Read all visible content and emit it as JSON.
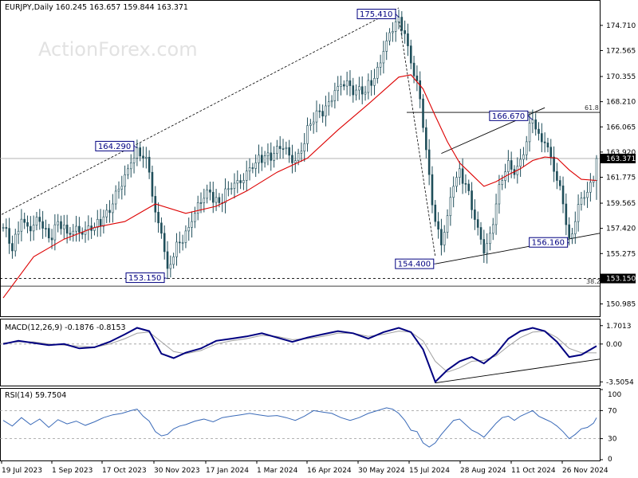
{
  "header": {
    "main": "EURJPY,Daily  160.245 163.657 159.844 163.371",
    "macd": "MACD(12,26,9) -0.1876 -0.8153",
    "rsi": "RSI(14) 59.7504"
  },
  "watermark": "ActionForex.com",
  "colors": {
    "background": "#ffffff",
    "candles": "#1f4e5a",
    "ma_line": "#dd0000",
    "macd_line": "#000080",
    "signal_line": "#a0a0a0",
    "rsi_line": "#3a6ab8",
    "callout_border": "#000080",
    "price_box": "#000000",
    "price_box_text": "#ffffff"
  },
  "price_axis": {
    "ticks": [
      "174.710",
      "172.565",
      "170.355",
      "168.210",
      "166.065",
      "163.920",
      "161.775",
      "159.565",
      "157.420",
      "155.275",
      "153.130",
      "150.985"
    ],
    "current_price": "163.371",
    "level_box": "153.150"
  },
  "macd_axis": {
    "ticks": [
      "1.7013",
      "0.00",
      "-3.5054"
    ]
  },
  "rsi_axis": {
    "ticks": [
      "100",
      "70",
      "30",
      "0"
    ]
  },
  "date_axis": {
    "labels": [
      "19 Jul 2023",
      "1 Sep 2023",
      "17 Oct 2023",
      "30 Nov 2023",
      "17 Jan 2024",
      "1 Mar 2024",
      "16 Apr 2024",
      "30 May 2024",
      "15 Jul 2024",
      "28 Aug 2024",
      "11 Oct 2024",
      "26 Nov 2024"
    ]
  },
  "annotations": {
    "peaks": [
      {
        "label": "175.410"
      },
      {
        "label": "164.290"
      },
      {
        "label": "166.670"
      },
      {
        "label": "153.150"
      },
      {
        "label": "154.400"
      },
      {
        "label": "156.160"
      }
    ],
    "fib_high": "61.8",
    "fib_low": "38.2"
  },
  "chart_data": {
    "type": "candlestick",
    "symbol": "EURJPY",
    "timeframe": "Daily",
    "last_bar": {
      "open": 160.245,
      "high": 163.657,
      "low": 159.844,
      "close": 163.371
    },
    "ylim": [
      150.0,
      176.6
    ],
    "x_dates": [
      "19 Jul 2023",
      "1 Sep 2023",
      "17 Oct 2023",
      "30 Nov 2023",
      "17 Jan 2024",
      "1 Mar 2024",
      "16 Apr 2024",
      "30 May 2024",
      "15 Jul 2024",
      "28 Aug 2024",
      "11 Oct 2024",
      "26 Nov 2024"
    ],
    "price_path": [
      [
        0,
        157.5
      ],
      [
        3,
        155.5
      ],
      [
        6,
        158.2
      ],
      [
        9,
        157.2
      ],
      [
        12,
        158.0
      ],
      [
        15,
        156.6
      ],
      [
        18,
        158.0
      ],
      [
        21,
        157.0
      ],
      [
        24,
        157.6
      ],
      [
        27,
        157.3
      ],
      [
        30,
        157.5
      ],
      [
        33,
        158.4
      ],
      [
        36,
        159.5
      ],
      [
        39,
        161.0
      ],
      [
        42,
        163.0
      ],
      [
        44,
        164.29
      ],
      [
        46,
        163.4
      ],
      [
        48,
        162.2
      ],
      [
        50,
        158.8
      ],
      [
        52,
        157.0
      ],
      [
        54,
        154.0
      ],
      [
        56,
        155.0
      ],
      [
        58,
        156.2
      ],
      [
        60,
        157.2
      ],
      [
        62,
        158.0
      ],
      [
        65,
        159.6
      ],
      [
        68,
        160.5
      ],
      [
        71,
        159.6
      ],
      [
        74,
        160.8
      ],
      [
        77,
        161.5
      ],
      [
        80,
        162.3
      ],
      [
        83,
        163.0
      ],
      [
        86,
        163.6
      ],
      [
        89,
        163.8
      ],
      [
        92,
        164.2
      ],
      [
        95,
        163.0
      ],
      [
        98,
        164.0
      ],
      [
        101,
        166.3
      ],
      [
        104,
        167.4
      ],
      [
        107,
        168.2
      ],
      [
        110,
        169.5
      ],
      [
        113,
        170.0
      ],
      [
        116,
        169.2
      ],
      [
        119,
        169.0
      ],
      [
        122,
        170.2
      ],
      [
        125,
        172.5
      ],
      [
        128,
        174.2
      ],
      [
        130,
        175.41
      ],
      [
        132,
        174.0
      ],
      [
        134,
        171.5
      ],
      [
        136,
        170.0
      ],
      [
        138,
        166.0
      ],
      [
        140,
        162.0
      ],
      [
        142,
        158.0
      ],
      [
        144,
        156.0
      ],
      [
        146,
        158.5
      ],
      [
        148,
        161.0
      ],
      [
        150,
        162.5
      ],
      [
        152,
        161.2
      ],
      [
        154,
        159.0
      ],
      [
        156,
        157.5
      ],
      [
        158,
        155.3
      ],
      [
        160,
        157.0
      ],
      [
        162,
        159.5
      ],
      [
        164,
        161.5
      ],
      [
        166,
        163.2
      ],
      [
        168,
        162.0
      ],
      [
        170,
        163.3
      ],
      [
        172,
        164.8
      ],
      [
        174,
        166.67
      ],
      [
        176,
        165.5
      ],
      [
        178,
        164.7
      ],
      [
        180,
        163.5
      ],
      [
        182,
        161.5
      ],
      [
        184,
        159.5
      ],
      [
        186,
        156.6
      ],
      [
        188,
        158.0
      ],
      [
        190,
        160.0
      ],
      [
        192,
        160.5
      ],
      [
        194,
        161.5
      ],
      [
        195,
        163.371
      ]
    ],
    "moving_average_path": [
      [
        0,
        151.5
      ],
      [
        10,
        155.0
      ],
      [
        20,
        156.5
      ],
      [
        30,
        157.5
      ],
      [
        40,
        158.0
      ],
      [
        50,
        159.5
      ],
      [
        60,
        158.7
      ],
      [
        70,
        159.3
      ],
      [
        80,
        160.6
      ],
      [
        90,
        162.2
      ],
      [
        100,
        163.4
      ],
      [
        110,
        165.8
      ],
      [
        120,
        168.0
      ],
      [
        130,
        170.3
      ],
      [
        134,
        170.5
      ],
      [
        138,
        169.3
      ],
      [
        142,
        167.0
      ],
      [
        146,
        164.8
      ],
      [
        150,
        163.0
      ],
      [
        154,
        162.0
      ],
      [
        158,
        161.0
      ],
      [
        162,
        161.4
      ],
      [
        166,
        162.0
      ],
      [
        170,
        162.5
      ],
      [
        174,
        163.2
      ],
      [
        178,
        163.5
      ],
      [
        182,
        163.4
      ],
      [
        186,
        162.4
      ],
      [
        190,
        161.6
      ],
      [
        195,
        161.5
      ]
    ],
    "levels": [
      {
        "name": "61.8",
        "value": 167.3
      },
      {
        "name": "38.2",
        "value": 152.5
      },
      {
        "name": "153.150",
        "value": 153.15
      },
      {
        "name": "163.371",
        "value": 163.371
      }
    ],
    "macd": {
      "params": "12,26,9",
      "macd": -0.1876,
      "signal": -0.8153,
      "ylim": [
        -3.7,
        2.2
      ],
      "macd_path": [
        [
          0,
          0.0
        ],
        [
          5,
          0.3
        ],
        [
          10,
          0.1
        ],
        [
          15,
          -0.1
        ],
        [
          20,
          0.0
        ],
        [
          25,
          -0.4
        ],
        [
          30,
          -0.3
        ],
        [
          35,
          0.2
        ],
        [
          40,
          0.9
        ],
        [
          44,
          1.5
        ],
        [
          48,
          1.2
        ],
        [
          52,
          -0.9
        ],
        [
          56,
          -1.3
        ],
        [
          60,
          -0.8
        ],
        [
          65,
          -0.4
        ],
        [
          70,
          0.3
        ],
        [
          75,
          0.5
        ],
        [
          80,
          0.7
        ],
        [
          85,
          1.0
        ],
        [
          90,
          0.6
        ],
        [
          95,
          0.2
        ],
        [
          100,
          0.6
        ],
        [
          105,
          0.9
        ],
        [
          110,
          1.2
        ],
        [
          115,
          1.0
        ],
        [
          120,
          0.5
        ],
        [
          125,
          1.1
        ],
        [
          130,
          1.5
        ],
        [
          134,
          1.1
        ],
        [
          138,
          -0.5
        ],
        [
          142,
          -3.5
        ],
        [
          146,
          -2.4
        ],
        [
          150,
          -1.6
        ],
        [
          154,
          -1.2
        ],
        [
          158,
          -1.8
        ],
        [
          162,
          -0.9
        ],
        [
          166,
          0.5
        ],
        [
          170,
          1.2
        ],
        [
          174,
          1.5
        ],
        [
          178,
          1.2
        ],
        [
          182,
          0.2
        ],
        [
          186,
          -1.2
        ],
        [
          190,
          -1.0
        ],
        [
          195,
          -0.19
        ]
      ],
      "signal_path": [
        [
          0,
          0.1
        ],
        [
          5,
          0.2
        ],
        [
          10,
          0.2
        ],
        [
          15,
          0.0
        ],
        [
          20,
          -0.1
        ],
        [
          25,
          -0.2
        ],
        [
          30,
          -0.3
        ],
        [
          35,
          0.0
        ],
        [
          40,
          0.5
        ],
        [
          44,
          1.0
        ],
        [
          48,
          1.1
        ],
        [
          52,
          0.2
        ],
        [
          56,
          -0.7
        ],
        [
          60,
          -0.9
        ],
        [
          65,
          -0.6
        ],
        [
          70,
          0.0
        ],
        [
          75,
          0.3
        ],
        [
          80,
          0.5
        ],
        [
          85,
          0.8
        ],
        [
          90,
          0.7
        ],
        [
          95,
          0.4
        ],
        [
          100,
          0.5
        ],
        [
          105,
          0.7
        ],
        [
          110,
          1.0
        ],
        [
          115,
          1.0
        ],
        [
          120,
          0.7
        ],
        [
          125,
          0.9
        ],
        [
          130,
          1.2
        ],
        [
          134,
          1.1
        ],
        [
          138,
          0.3
        ],
        [
          142,
          -1.6
        ],
        [
          146,
          -2.6
        ],
        [
          150,
          -2.2
        ],
        [
          154,
          -1.6
        ],
        [
          158,
          -1.5
        ],
        [
          162,
          -1.1
        ],
        [
          166,
          -0.2
        ],
        [
          170,
          0.6
        ],
        [
          174,
          1.1
        ],
        [
          178,
          1.2
        ],
        [
          182,
          0.6
        ],
        [
          186,
          -0.4
        ],
        [
          190,
          -0.8
        ],
        [
          195,
          -0.82
        ]
      ]
    },
    "rsi": {
      "period": 14,
      "value": 59.7504,
      "ylim": [
        0,
        100
      ],
      "levels": [
        70,
        30
      ],
      "path": [
        [
          0,
          56
        ],
        [
          3,
          48
        ],
        [
          6,
          60
        ],
        [
          9,
          50
        ],
        [
          12,
          58
        ],
        [
          15,
          46
        ],
        [
          18,
          57
        ],
        [
          21,
          51
        ],
        [
          24,
          55
        ],
        [
          27,
          49
        ],
        [
          30,
          54
        ],
        [
          33,
          60
        ],
        [
          36,
          64
        ],
        [
          39,
          66
        ],
        [
          42,
          70
        ],
        [
          44,
          72
        ],
        [
          46,
          62
        ],
        [
          48,
          55
        ],
        [
          50,
          40
        ],
        [
          52,
          34
        ],
        [
          54,
          36
        ],
        [
          56,
          44
        ],
        [
          58,
          48
        ],
        [
          60,
          50
        ],
        [
          63,
          55
        ],
        [
          66,
          58
        ],
        [
          69,
          54
        ],
        [
          72,
          60
        ],
        [
          75,
          62
        ],
        [
          78,
          64
        ],
        [
          81,
          66
        ],
        [
          84,
          64
        ],
        [
          87,
          62
        ],
        [
          90,
          63
        ],
        [
          93,
          60
        ],
        [
          96,
          56
        ],
        [
          99,
          62
        ],
        [
          102,
          70
        ],
        [
          105,
          68
        ],
        [
          108,
          66
        ],
        [
          111,
          60
        ],
        [
          114,
          56
        ],
        [
          117,
          60
        ],
        [
          120,
          66
        ],
        [
          123,
          70
        ],
        [
          126,
          74
        ],
        [
          128,
          72
        ],
        [
          130,
          66
        ],
        [
          132,
          56
        ],
        [
          134,
          42
        ],
        [
          136,
          40
        ],
        [
          138,
          24
        ],
        [
          140,
          18
        ],
        [
          142,
          24
        ],
        [
          144,
          36
        ],
        [
          146,
          46
        ],
        [
          148,
          56
        ],
        [
          150,
          58
        ],
        [
          152,
          50
        ],
        [
          154,
          42
        ],
        [
          156,
          38
        ],
        [
          158,
          32
        ],
        [
          160,
          42
        ],
        [
          162,
          52
        ],
        [
          164,
          60
        ],
        [
          166,
          62
        ],
        [
          168,
          56
        ],
        [
          170,
          62
        ],
        [
          172,
          66
        ],
        [
          174,
          70
        ],
        [
          176,
          62
        ],
        [
          178,
          58
        ],
        [
          180,
          54
        ],
        [
          182,
          48
        ],
        [
          184,
          40
        ],
        [
          186,
          30
        ],
        [
          188,
          36
        ],
        [
          190,
          44
        ],
        [
          192,
          46
        ],
        [
          194,
          52
        ],
        [
          195,
          59.75
        ]
      ]
    }
  }
}
